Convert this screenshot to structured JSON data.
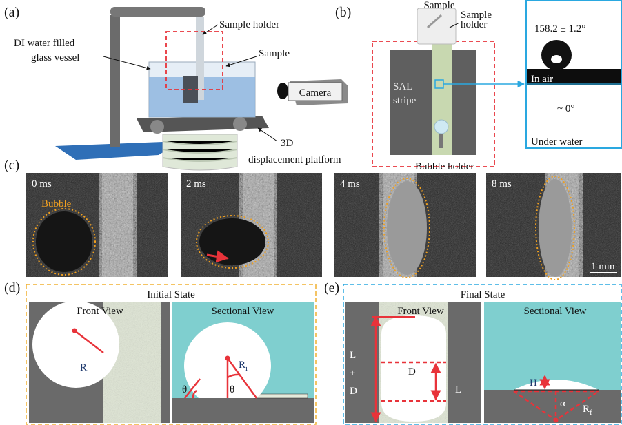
{
  "figure": {
    "a": {
      "label": "(a)",
      "sample_holder": "Sample holder",
      "sample": "Sample",
      "vessel": [
        "DI water filled",
        "glass vessel"
      ],
      "camera": "Camera",
      "platform": [
        "3D",
        "displacement platform"
      ]
    },
    "b": {
      "label": "(b)",
      "sample": "Sample",
      "sample_holder": [
        "Sample",
        "holder"
      ],
      "stripe": [
        "SAL",
        "stripe"
      ],
      "contact_angle_air": "158.2 ± 1.2°",
      "in_air": "In air",
      "contact_angle_water": "~ 0°",
      "under_water": "Under water",
      "bubble_holder": "Bubble holder"
    },
    "c": {
      "label": "(c)",
      "frames": [
        "0 ms",
        "2 ms",
        "4 ms",
        "8 ms"
      ],
      "bubble": "Bubble",
      "scale": "1 mm"
    },
    "d": {
      "label": "(d)",
      "title": "Initial State",
      "front_view": "Front View",
      "sectional_view": "Sectional View",
      "radius": {
        "symbol": "R",
        "sub": "i"
      },
      "angle": "θ"
    },
    "e": {
      "label": "(e)",
      "title": "Final State",
      "front_view": "Front View",
      "sectional_view": "Sectional View",
      "length_sum": [
        "L",
        "+",
        "D"
      ],
      "width": "D",
      "length": "L",
      "height": "H",
      "angle": "α",
      "radius": {
        "symbol": "R",
        "sub": "f"
      }
    }
  }
}
